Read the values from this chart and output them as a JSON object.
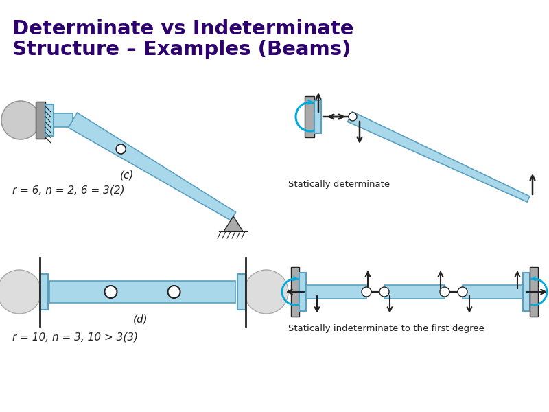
{
  "title_line1": "Determinate vs Indeterminate",
  "title_line2": "Structure – Examples (Beams)",
  "title_color": "#2d006e",
  "title_fontsize": 21,
  "bg_color": "#ffffff",
  "beam_color": "#a8d8ea",
  "beam_edge_color": "#5a9fc0",
  "dark_color": "#222222",
  "label_c": "(c)",
  "label_d": "(d)",
  "eq_c": "r = 6, n = 2, 6 = 3(2)",
  "eq_d": "r = 10, n = 3, 10 > 3(3)",
  "text_statically_det": "Statically determinate",
  "text_statically_indet": "Statically indeterminate to the first degree",
  "cyan_color": "#00aadd"
}
